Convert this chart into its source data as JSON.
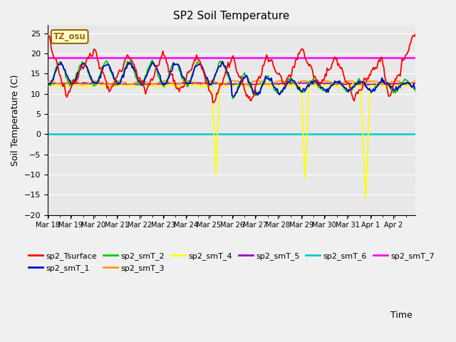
{
  "title": "SP2 Soil Temperature",
  "xlabel": "Time",
  "ylabel": "Soil Temperature (C)",
  "ylim": [
    -20,
    27
  ],
  "yticks": [
    -20,
    -15,
    -10,
    -5,
    0,
    5,
    10,
    15,
    20,
    25
  ],
  "series_colors": {
    "sp2_Tsurface": "#ff0000",
    "sp2_smT_1": "#0000cc",
    "sp2_smT_2": "#00cc00",
    "sp2_smT_3": "#ff9900",
    "sp2_smT_4": "#ffff00",
    "sp2_smT_5": "#9900cc",
    "sp2_smT_6": "#00cccc",
    "sp2_smT_7": "#ff00ff"
  },
  "annotation_label": "TZ_osu",
  "annotation_color": "#996600",
  "annotation_bg": "#ffffcc",
  "fig_bg": "#f0f0f0",
  "plot_bg_light": "#e8e8e8",
  "plot_bg_dark": "#d0d0d0"
}
